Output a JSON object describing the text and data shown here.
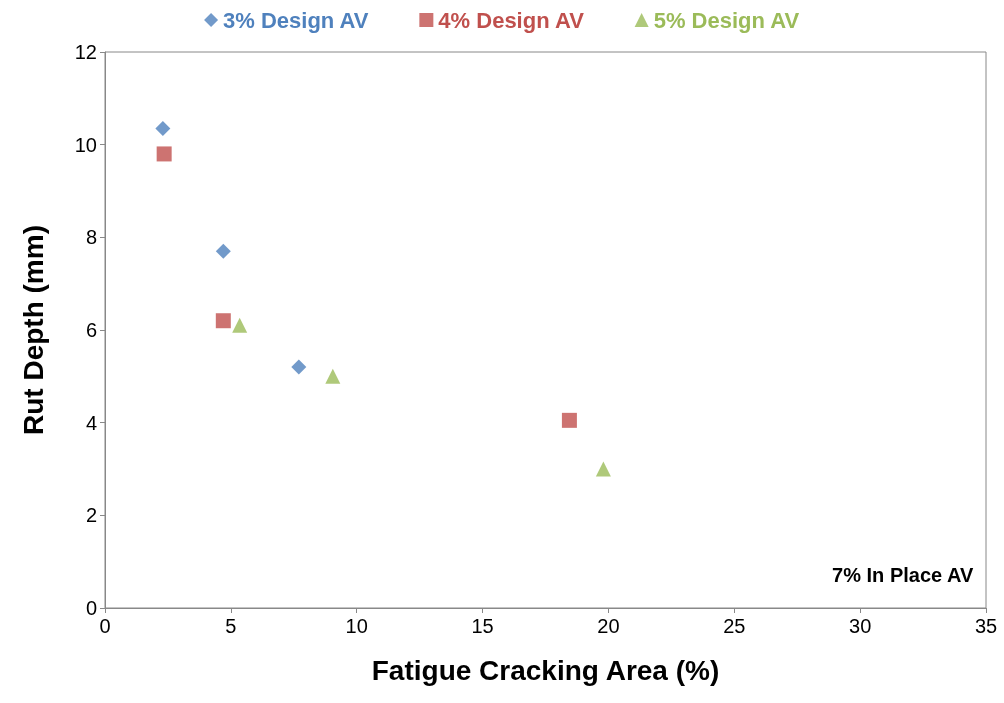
{
  "chart_data": {
    "type": "scatter",
    "xlabel": "Fatigue Cracking Area (%)",
    "ylabel": "Rut Depth (mm)",
    "xlim": [
      0,
      35
    ],
    "xticks": [
      0,
      5,
      10,
      15,
      20,
      25,
      30,
      35
    ],
    "ylim": [
      0,
      12
    ],
    "yticks": [
      0,
      2,
      4,
      6,
      8,
      10,
      12
    ],
    "grid": false,
    "legend": "top",
    "annotations": [
      "7% In Place AV"
    ],
    "series": [
      {
        "name": "3% Design AV",
        "color": "#4f81bd",
        "marker": "diamond",
        "x": [
          2.3,
          4.7,
          7.7
        ],
        "values": [
          10.35,
          7.7,
          5.2
        ]
      },
      {
        "name": "4% Design AV",
        "color": "#c0504d",
        "marker": "square",
        "x": [
          2.35,
          4.7,
          18.45
        ],
        "values": [
          9.8,
          6.2,
          4.05
        ]
      },
      {
        "name": "5% Design AV",
        "color": "#9bbb59",
        "marker": "triangle",
        "x": [
          5.35,
          9.05,
          19.8
        ],
        "values": [
          6.1,
          5.0,
          3.0
        ]
      }
    ]
  }
}
